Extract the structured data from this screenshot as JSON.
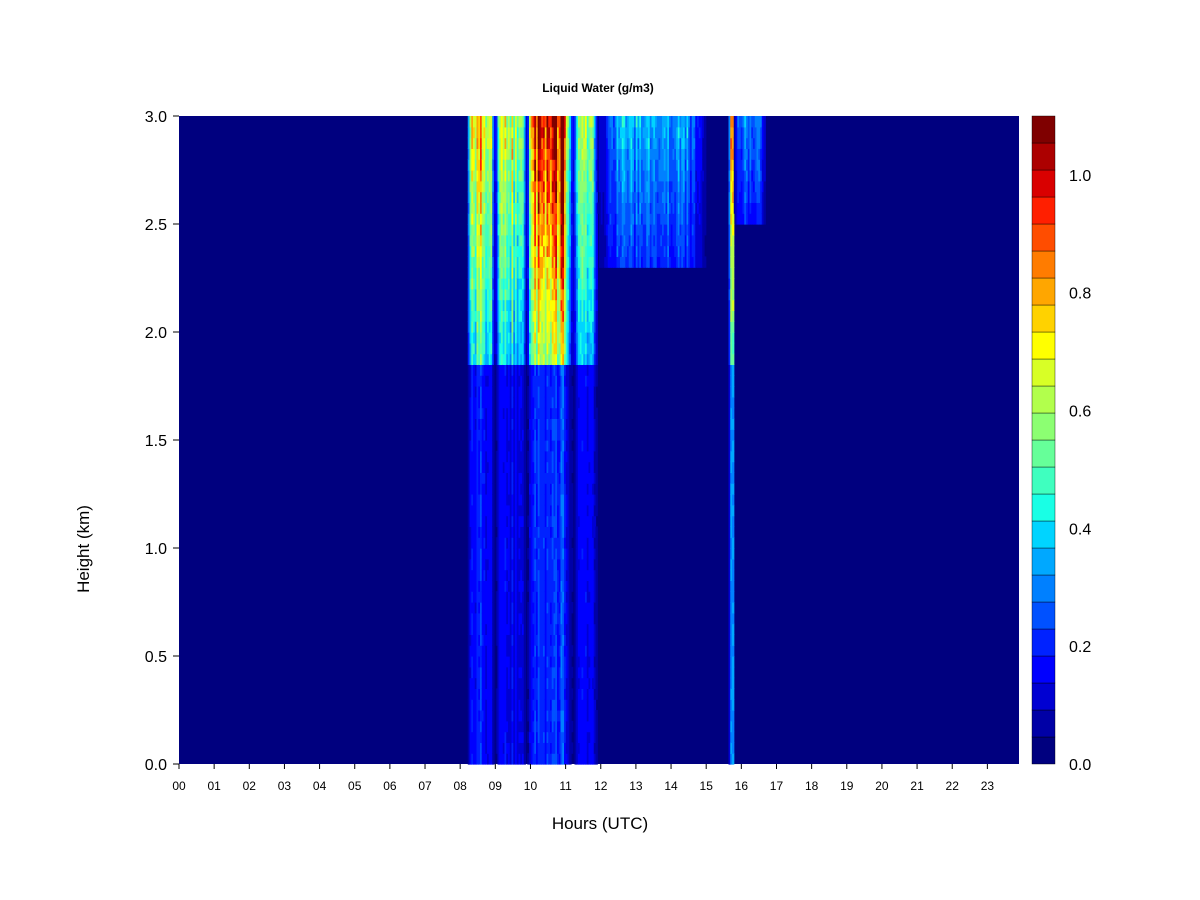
{
  "chart_data": {
    "type": "heatmap",
    "title": "Liquid Water (g/m3)",
    "xlabel": "Hours (UTC)",
    "ylabel": "Height (km)",
    "xlim": [
      0,
      23.9
    ],
    "ylim": [
      0,
      3.0
    ],
    "x_ticks": [
      "00",
      "01",
      "02",
      "03",
      "04",
      "05",
      "06",
      "07",
      "08",
      "09",
      "10",
      "11",
      "12",
      "13",
      "14",
      "15",
      "16",
      "17",
      "18",
      "19",
      "20",
      "21",
      "22",
      "23"
    ],
    "y_ticks": [
      "0.0",
      "0.5",
      "1.0",
      "1.5",
      "2.0",
      "2.5",
      "3.0"
    ],
    "colorbar": {
      "min": 0.0,
      "max": 1.1,
      "step": 0.05,
      "ticks": [
        "0.0",
        "0.2",
        "0.4",
        "0.6",
        "0.8",
        "1.0"
      ],
      "colors": [
        "#00007f",
        "#0000a6",
        "#0000d2",
        "#0000ff",
        "#0022ff",
        "#0051ff",
        "#0080ff",
        "#00a8ff",
        "#00d4ff",
        "#19ffe5",
        "#3fffbf",
        "#66ff99",
        "#8cff72",
        "#b2ff4c",
        "#d8ff26",
        "#ffff00",
        "#ffd200",
        "#ffa600",
        "#ff7c00",
        "#ff4d00",
        "#ff1f00",
        "#d90000",
        "#ac0000",
        "#7f0000"
      ]
    },
    "cloud_events": [
      {
        "start_hour": 8.2,
        "end_hour": 9.0,
        "base_km": 1.85,
        "upper_lwc": 0.75,
        "lower_lwc": 0.18
      },
      {
        "start_hour": 9.0,
        "end_hour": 9.9,
        "base_km": 1.85,
        "upper_lwc": 0.65,
        "lower_lwc": 0.15
      },
      {
        "start_hour": 9.9,
        "end_hour": 11.2,
        "base_km": 1.85,
        "upper_lwc": 1.05,
        "lower_lwc": 0.22
      },
      {
        "start_hour": 11.2,
        "end_hour": 11.9,
        "base_km": 1.85,
        "upper_lwc": 0.55,
        "lower_lwc": 0.14
      },
      {
        "start_hour": 11.9,
        "end_hour": 15.0,
        "base_km": 2.3,
        "upper_lwc": 0.35,
        "lower_lwc": 0.03
      },
      {
        "start_hour": 15.65,
        "end_hour": 15.8,
        "base_km": 1.85,
        "upper_lwc": 0.8,
        "lower_lwc": 0.3
      },
      {
        "start_hour": 15.8,
        "end_hour": 16.7,
        "base_km": 2.5,
        "upper_lwc": 0.3,
        "lower_lwc": 0.0
      }
    ]
  }
}
